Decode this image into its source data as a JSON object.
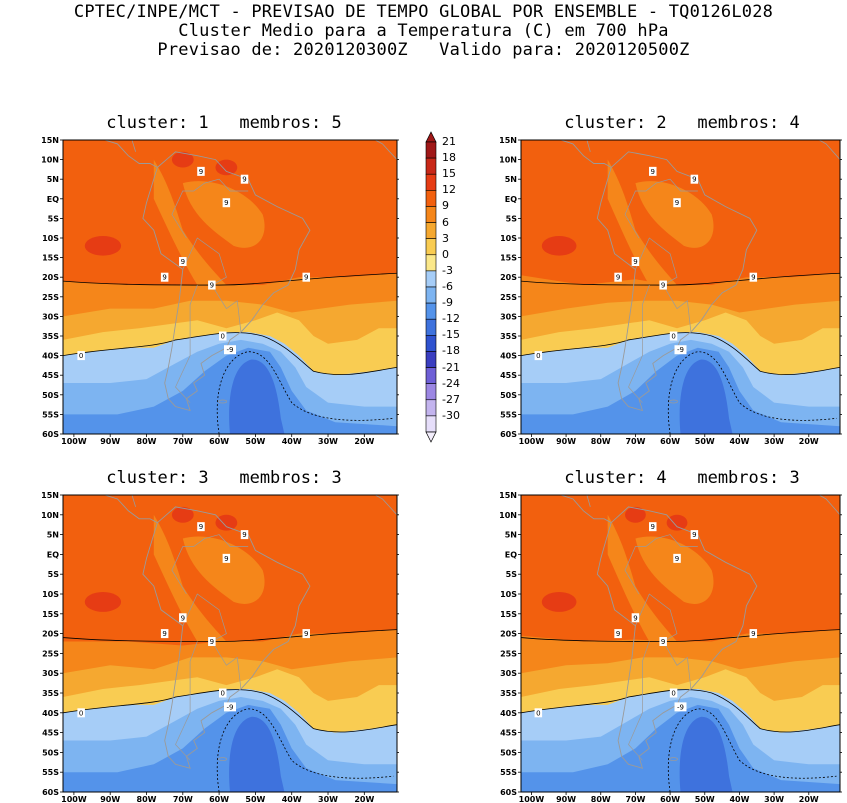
{
  "header": {
    "line1": "CPTEC/INPE/MCT - PREVISAO DE TEMPO GLOBAL POR ENSEMBLE - TQ0126L028",
    "line2": "Cluster Medio para a Temperatura (C) em 700 hPa",
    "line3": "Previsao de: 2020120300Z   Valido para: 2020120500Z"
  },
  "panels": [
    {
      "title": "cluster: 1   membros: 5"
    },
    {
      "title": "cluster: 2   membros: 4"
    },
    {
      "title": "cluster: 3   membros: 3"
    },
    {
      "title": "cluster: 4   membros: 3"
    }
  ],
  "axes": {
    "lat_labels": [
      "15N",
      "10N",
      "5N",
      "EQ",
      "5S",
      "10S",
      "15S",
      "20S",
      "25S",
      "30S",
      "35S",
      "40S",
      "45S",
      "50S",
      "55S",
      "60S"
    ],
    "lon_labels": [
      "100W",
      "90W",
      "80W",
      "70W",
      "60W",
      "50W",
      "40W",
      "30W",
      "20W"
    ]
  },
  "colorbar": {
    "labels": [
      "21",
      "18",
      "15",
      "12",
      "9",
      "6",
      "3",
      "0",
      "-3",
      "-6",
      "-9",
      "-12",
      "-15",
      "-18",
      "-21",
      "-24",
      "-27",
      "-30"
    ],
    "colors": [
      "#a01818",
      "#c82818",
      "#e63c14",
      "#f2600e",
      "#f5861a",
      "#f5a830",
      "#f9cc52",
      "#fbe88a",
      "#a6cdf7",
      "#7db4f1",
      "#5493ea",
      "#3e72dd",
      "#2f52cf",
      "#3a3ec0",
      "#6e5fd6",
      "#9c87e3",
      "#c3b4ee",
      "#e6defa"
    ]
  },
  "contour_labels": [
    "9",
    "0",
    "-9"
  ]
}
